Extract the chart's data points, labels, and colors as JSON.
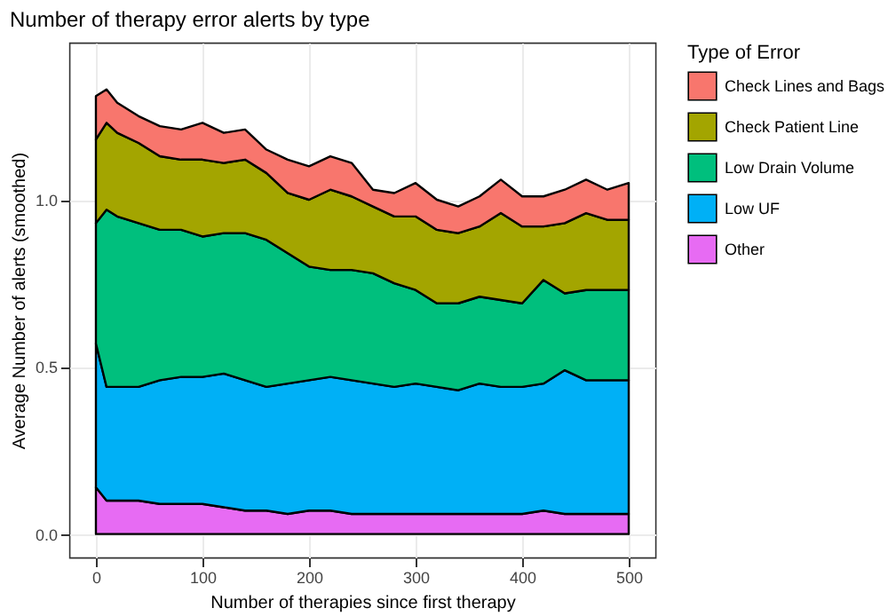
{
  "chart_data": {
    "type": "area",
    "stacked": true,
    "title": "Number of therapy error alerts by type",
    "xlabel": "Number of therapies since first therapy",
    "ylabel": "Average Number of alerts (smoothed)",
    "legend_title": "Type of Error",
    "legend": "right",
    "grid": true,
    "x": [
      0,
      10,
      20,
      40,
      60,
      80,
      100,
      120,
      140,
      160,
      180,
      200,
      220,
      240,
      260,
      280,
      300,
      320,
      340,
      360,
      380,
      400,
      420,
      440,
      460,
      480,
      500
    ],
    "xlim": [
      -25,
      525
    ],
    "xticks": [
      0,
      100,
      200,
      300,
      400,
      500
    ],
    "ylim": [
      -0.07,
      1.47
    ],
    "yticks": [
      {
        "value": 0,
        "label": "0.0"
      },
      {
        "value": 0.5,
        "label": "0.5"
      },
      {
        "value": 1,
        "label": "1.0"
      }
    ],
    "series": [
      {
        "name": "Other",
        "color": "#e76bf3",
        "values": [
          0.14,
          0.1,
          0.1,
          0.1,
          0.09,
          0.09,
          0.09,
          0.08,
          0.07,
          0.07,
          0.06,
          0.07,
          0.07,
          0.06,
          0.06,
          0.06,
          0.06,
          0.06,
          0.06,
          0.06,
          0.06,
          0.06,
          0.07,
          0.06,
          0.06,
          0.06,
          0.06
        ]
      },
      {
        "name": "Low UF",
        "color": "#00b0f6",
        "values": [
          0.43,
          0.34,
          0.34,
          0.34,
          0.37,
          0.38,
          0.38,
          0.4,
          0.39,
          0.37,
          0.39,
          0.39,
          0.4,
          0.4,
          0.39,
          0.38,
          0.39,
          0.38,
          0.37,
          0.39,
          0.38,
          0.38,
          0.38,
          0.43,
          0.4,
          0.4,
          0.4
        ]
      },
      {
        "name": "Low Drain Volume",
        "color": "#00bf7d",
        "values": [
          0.36,
          0.53,
          0.51,
          0.49,
          0.45,
          0.44,
          0.42,
          0.42,
          0.44,
          0.44,
          0.39,
          0.34,
          0.32,
          0.33,
          0.33,
          0.31,
          0.28,
          0.25,
          0.26,
          0.26,
          0.26,
          0.25,
          0.31,
          0.23,
          0.27,
          0.27,
          0.27
        ]
      },
      {
        "name": "Check Patient Line",
        "color": "#a3a500",
        "values": [
          0.25,
          0.26,
          0.25,
          0.24,
          0.22,
          0.21,
          0.23,
          0.21,
          0.22,
          0.2,
          0.18,
          0.2,
          0.24,
          0.22,
          0.2,
          0.2,
          0.22,
          0.22,
          0.21,
          0.21,
          0.26,
          0.23,
          0.16,
          0.21,
          0.23,
          0.21,
          0.21
        ]
      },
      {
        "name": "Check Lines and Bags",
        "color": "#f8766d",
        "values": [
          0.13,
          0.1,
          0.09,
          0.08,
          0.09,
          0.09,
          0.11,
          0.09,
          0.09,
          0.07,
          0.1,
          0.1,
          0.1,
          0.1,
          0.05,
          0.07,
          0.1,
          0.09,
          0.08,
          0.09,
          0.1,
          0.09,
          0.09,
          0.1,
          0.1,
          0.09,
          0.11
        ]
      }
    ]
  }
}
